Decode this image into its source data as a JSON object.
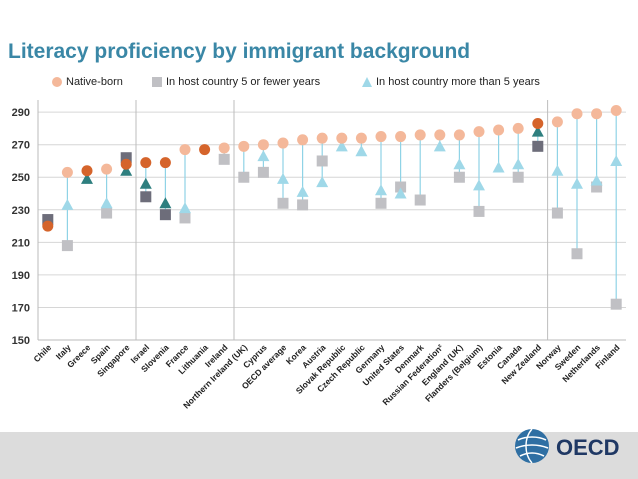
{
  "title": "Literacy proficiency by immigrant background",
  "colors": {
    "title": "#3a87a6",
    "native": "#f4b89a",
    "native_dark": "#d5642b",
    "short": "#c0c0c4",
    "short_dark": "#6d6d7a",
    "long": "#9fd8e8",
    "long_dark": "#2e7f7f",
    "stem": "#8fd3e6"
  },
  "brand": {
    "name": "OECD",
    "icon": "globe-icon"
  },
  "chart_data": {
    "type": "scatter",
    "title": "Literacy proficiency by immigrant background",
    "xlabel": "",
    "ylabel": "",
    "ylim": [
      150,
      295
    ],
    "yticks": [
      150,
      170,
      190,
      210,
      230,
      250,
      270,
      290
    ],
    "grid": true,
    "legend_position": "top",
    "categories": [
      "Chile",
      "Italy",
      "Greece",
      "Spain",
      "Singapore",
      "Israel",
      "Slovenia",
      "France",
      "Lithuania",
      "Ireland",
      "Northern Ireland (UK)",
      "Cyprus",
      "OECD average",
      "Korea",
      "Austria",
      "Slovak Republic",
      "Czech Republic",
      "Germany",
      "United States",
      "Denmark",
      "Russian Federation²",
      "England (UK)",
      "Flanders (Belgium)",
      "Estonia",
      "Canada",
      "New Zealand",
      "Norway",
      "Sweden",
      "Netherlands",
      "Finland"
    ],
    "series": [
      {
        "name": "Native-born",
        "marker": "circle",
        "values": [
          220,
          253,
          254,
          255,
          258,
          259,
          259,
          267,
          267,
          268,
          269,
          270,
          271,
          273,
          274,
          274,
          274,
          275,
          275,
          276,
          276,
          276,
          278,
          279,
          280,
          283,
          284,
          289,
          289,
          291
        ],
        "significant": [
          1,
          0,
          1,
          0,
          1,
          1,
          1,
          0,
          1,
          0,
          0,
          0,
          0,
          0,
          0,
          0,
          0,
          0,
          0,
          0,
          0,
          0,
          0,
          0,
          0,
          1,
          0,
          0,
          0,
          0
        ]
      },
      {
        "name": "In host country 5 or fewer years",
        "marker": "square",
        "values": [
          224,
          208,
          null,
          228,
          262,
          238,
          227,
          225,
          null,
          261,
          250,
          253,
          234,
          233,
          260,
          null,
          null,
          234,
          244,
          236,
          null,
          250,
          229,
          null,
          250,
          269,
          228,
          203,
          244,
          172
        ],
        "significant": [
          1,
          0,
          0,
          0,
          1,
          1,
          1,
          0,
          0,
          0,
          0,
          0,
          0,
          0,
          0,
          0,
          0,
          0,
          0,
          0,
          0,
          0,
          0,
          0,
          0,
          1,
          0,
          0,
          0,
          0
        ]
      },
      {
        "name": "In host country more than 5 years",
        "marker": "triangle",
        "values": [
          null,
          233,
          249,
          234,
          254,
          246,
          234,
          231,
          null,
          null,
          null,
          263,
          249,
          241,
          247,
          269,
          266,
          242,
          240,
          null,
          269,
          258,
          245,
          256,
          258,
          278,
          254,
          246,
          248,
          260
        ],
        "significant": [
          0,
          0,
          1,
          0,
          1,
          1,
          1,
          0,
          0,
          0,
          0,
          0,
          0,
          0,
          0,
          0,
          0,
          0,
          0,
          0,
          0,
          0,
          0,
          0,
          0,
          1,
          0,
          0,
          0,
          0
        ]
      }
    ],
    "group_dividers_after": [
      "Singapore",
      "Ireland",
      "New Zealand"
    ]
  }
}
